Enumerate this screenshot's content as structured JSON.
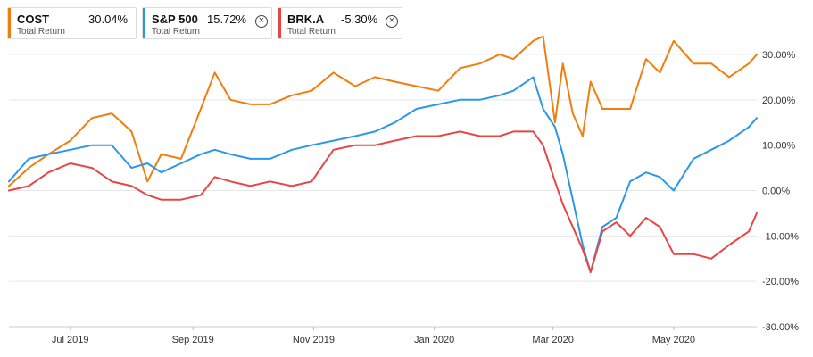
{
  "legend": [
    {
      "symbol": "COST",
      "value": "30.04%",
      "label": "Total Return",
      "color": "#f07e0e",
      "removable": false
    },
    {
      "symbol": "S&P 500",
      "value": "15.72%",
      "label": "Total Return",
      "color": "#2b97e8",
      "removable": true
    },
    {
      "symbol": "BRK.A",
      "value": "-5.30%",
      "label": "Total Return",
      "color": "#e84545",
      "removable": true
    }
  ],
  "chart_data": {
    "type": "line",
    "x_tick_labels": [
      "Jul 2019",
      "Sep 2019",
      "Nov 2019",
      "Jan 2020",
      "Mar 2020",
      "May 2020"
    ],
    "x_tick_dates": [
      "2019-07-01",
      "2019-09-01",
      "2019-11-01",
      "2020-01-01",
      "2020-03-01",
      "2020-05-01"
    ],
    "x_range": [
      "2019-05-31",
      "2020-06-12"
    ],
    "y_tick_labels": [
      "30.00%",
      "20.00%",
      "10.00%",
      "0.00%",
      "-10.00%",
      "-20.00%",
      "-30.00%"
    ],
    "ylim": [
      -30,
      30
    ],
    "y_axis_side": "right",
    "grid": "horizontal",
    "series": [
      {
        "name": "COST",
        "color": "#f07e0e",
        "dates": [
          "2019-05-31",
          "2019-06-10",
          "2019-06-20",
          "2019-07-01",
          "2019-07-12",
          "2019-07-22",
          "2019-08-01",
          "2019-08-09",
          "2019-08-16",
          "2019-08-26",
          "2019-09-05",
          "2019-09-12",
          "2019-09-20",
          "2019-09-30",
          "2019-10-10",
          "2019-10-21",
          "2019-10-31",
          "2019-11-11",
          "2019-11-22",
          "2019-12-02",
          "2019-12-12",
          "2019-12-23",
          "2020-01-03",
          "2020-01-14",
          "2020-01-24",
          "2020-02-03",
          "2020-02-10",
          "2020-02-20",
          "2020-02-25",
          "2020-03-02",
          "2020-03-06",
          "2020-03-11",
          "2020-03-16",
          "2020-03-20",
          "2020-03-26",
          "2020-04-02",
          "2020-04-09",
          "2020-04-17",
          "2020-04-24",
          "2020-05-01",
          "2020-05-11",
          "2020-05-20",
          "2020-05-29",
          "2020-06-08",
          "2020-06-12"
        ],
        "values": [
          1,
          5,
          8,
          11,
          16,
          17,
          13,
          2,
          8,
          7,
          18,
          26,
          20,
          19,
          19,
          21,
          22,
          26,
          23,
          25,
          24,
          23,
          22,
          27,
          28,
          30,
          29,
          33,
          34,
          15,
          28,
          17,
          12,
          24,
          18,
          18,
          18,
          29,
          26,
          33,
          28,
          28,
          25,
          28,
          30
        ]
      },
      {
        "name": "S&P 500",
        "color": "#2b97e8",
        "dates": [
          "2019-05-31",
          "2019-06-10",
          "2019-06-20",
          "2019-07-01",
          "2019-07-12",
          "2019-07-22",
          "2019-08-01",
          "2019-08-09",
          "2019-08-16",
          "2019-08-26",
          "2019-09-05",
          "2019-09-12",
          "2019-09-20",
          "2019-09-30",
          "2019-10-10",
          "2019-10-21",
          "2019-10-31",
          "2019-11-11",
          "2019-11-22",
          "2019-12-02",
          "2019-12-12",
          "2019-12-23",
          "2020-01-03",
          "2020-01-14",
          "2020-01-24",
          "2020-02-03",
          "2020-02-10",
          "2020-02-20",
          "2020-02-25",
          "2020-03-02",
          "2020-03-06",
          "2020-03-11",
          "2020-03-16",
          "2020-03-20",
          "2020-03-26",
          "2020-04-02",
          "2020-04-09",
          "2020-04-17",
          "2020-04-24",
          "2020-05-01",
          "2020-05-11",
          "2020-05-20",
          "2020-05-29",
          "2020-06-08",
          "2020-06-12"
        ],
        "values": [
          2,
          7,
          8,
          9,
          10,
          10,
          5,
          6,
          4,
          6,
          8,
          9,
          8,
          7,
          7,
          9,
          10,
          11,
          12,
          13,
          15,
          18,
          19,
          20,
          20,
          21,
          22,
          25,
          18,
          14,
          8,
          -2,
          -12,
          -18,
          -8,
          -6,
          2,
          4,
          3,
          0,
          7,
          9,
          11,
          14,
          16
        ]
      },
      {
        "name": "BRK.A",
        "color": "#e84545",
        "dates": [
          "2019-05-31",
          "2019-06-10",
          "2019-06-20",
          "2019-07-01",
          "2019-07-12",
          "2019-07-22",
          "2019-08-01",
          "2019-08-09",
          "2019-08-16",
          "2019-08-26",
          "2019-09-05",
          "2019-09-12",
          "2019-09-20",
          "2019-09-30",
          "2019-10-10",
          "2019-10-21",
          "2019-10-31",
          "2019-11-11",
          "2019-11-22",
          "2019-12-02",
          "2019-12-12",
          "2019-12-23",
          "2020-01-03",
          "2020-01-14",
          "2020-01-24",
          "2020-02-03",
          "2020-02-10",
          "2020-02-20",
          "2020-02-25",
          "2020-03-02",
          "2020-03-06",
          "2020-03-11",
          "2020-03-16",
          "2020-03-20",
          "2020-03-26",
          "2020-04-02",
          "2020-04-09",
          "2020-04-17",
          "2020-04-24",
          "2020-05-01",
          "2020-05-11",
          "2020-05-20",
          "2020-05-29",
          "2020-06-08",
          "2020-06-12"
        ],
        "values": [
          0,
          1,
          4,
          6,
          5,
          2,
          1,
          -1,
          -2,
          -2,
          -1,
          3,
          2,
          1,
          2,
          1,
          2,
          9,
          10,
          10,
          11,
          12,
          12,
          13,
          12,
          12,
          13,
          13,
          10,
          2,
          -3,
          -8,
          -13,
          -18,
          -9,
          -7,
          -10,
          -6,
          -8,
          -14,
          -14,
          -15,
          -12,
          -9,
          -5
        ]
      }
    ]
  }
}
